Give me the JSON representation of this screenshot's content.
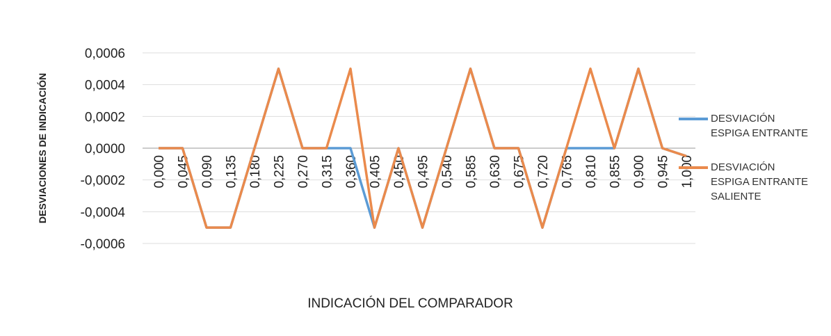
{
  "chart_data": {
    "type": "line",
    "y_label": "DESVIACIONES DE INDICACIÓN",
    "x_label": "INDICACIÓN DEL COMPARADOR",
    "categories": [
      "0,000",
      "0,045",
      "0,090",
      "0,135",
      "0,180",
      "0,225",
      "0,270",
      "0,315",
      "0,360",
      "0,405",
      "0,450",
      "0,495",
      "0,540",
      "0,585",
      "0,630",
      "0,675",
      "0,720",
      "0,765",
      "0,810",
      "0,855",
      "0,900",
      "0,945",
      "1,000"
    ],
    "series": [
      {
        "name": "DESVIACIÓN ESPIGA ENTRANTE",
        "color": "#5b9bd5",
        "values": [
          0,
          0,
          -0.0005,
          -0.0005,
          0,
          0.0005,
          0,
          0,
          0,
          -0.0005,
          0,
          -0.0005,
          0,
          0.0005,
          0,
          0,
          -0.0005,
          0,
          0,
          0,
          0.0005,
          0,
          -5e-05
        ]
      },
      {
        "name": "DESVIACIÓN ESPIGA ENTRANTE SALIENTE",
        "color": "#ea8a4c",
        "values": [
          0,
          0,
          -0.0005,
          -0.0005,
          0,
          0.0005,
          0,
          0,
          0.0005,
          -0.0005,
          0,
          -0.0005,
          0,
          0.0005,
          0,
          0,
          -0.0005,
          0,
          0.0005,
          0,
          0.0005,
          0,
          -5e-05
        ]
      }
    ],
    "ylim": [
      -0.0006,
      0.0006
    ],
    "yticks": [
      {
        "value": -0.0006,
        "label": "-0,0006"
      },
      {
        "value": -0.0004,
        "label": "-0,0004"
      },
      {
        "value": -0.0002,
        "label": "-0,0002"
      },
      {
        "value": 0,
        "label": "0,0000"
      },
      {
        "value": 0.0002,
        "label": "0,0002"
      },
      {
        "value": 0.0004,
        "label": "0,0004"
      },
      {
        "value": 0.0006,
        "label": "0,0006"
      }
    ],
    "grid": true
  }
}
